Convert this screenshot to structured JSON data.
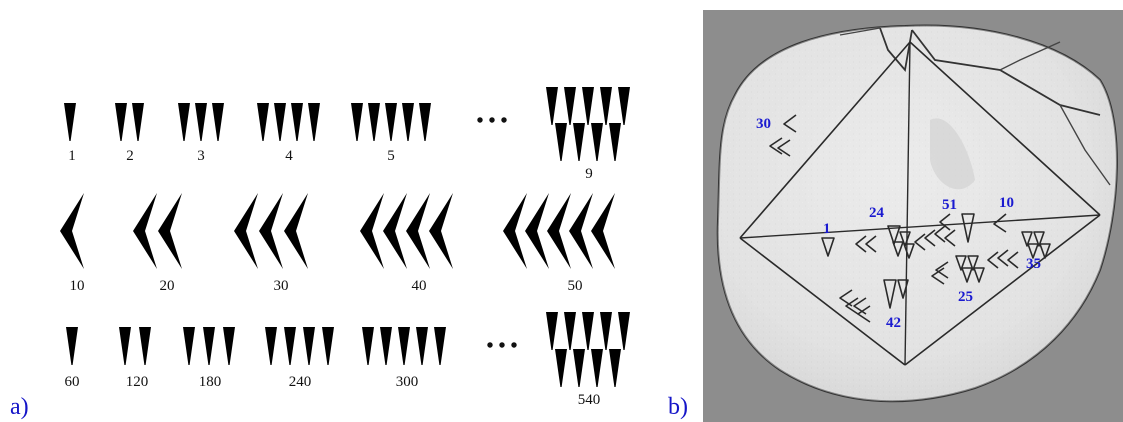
{
  "panel_a": {
    "label": "a)",
    "ones_row": [
      "1",
      "2",
      "3",
      "4",
      "5",
      "9"
    ],
    "tens_row": [
      "10",
      "20",
      "30",
      "40",
      "50"
    ],
    "sixties_row": [
      "60",
      "120",
      "180",
      "240",
      "300",
      "540"
    ],
    "ellipsis": "• • •"
  },
  "panel_b": {
    "label": "b)",
    "tablet_labels": [
      "30",
      "1",
      "24",
      "51",
      "10",
      "35",
      "25",
      "42"
    ]
  }
}
